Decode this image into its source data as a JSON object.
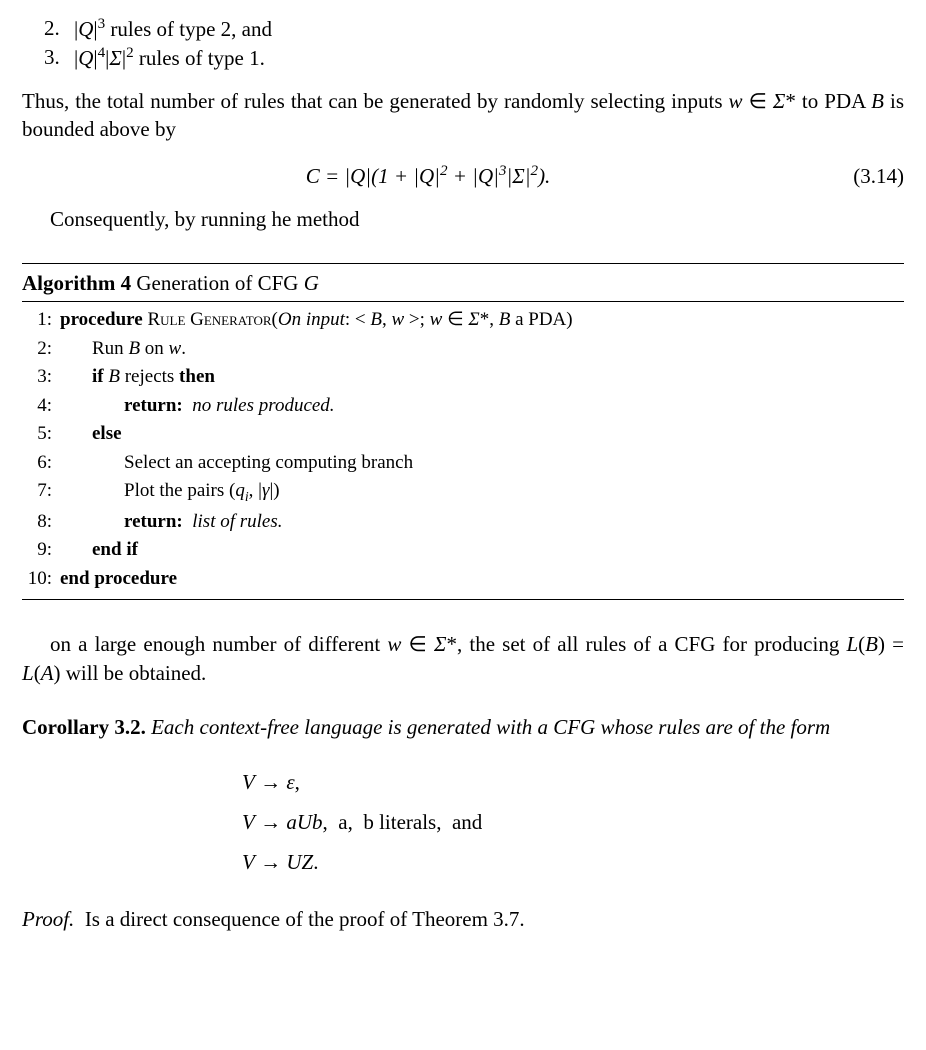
{
  "listitems": [
    {
      "num": "2.",
      "text_html": "|<i>Q</i>|<sup>3</sup> rules of type 2, and"
    },
    {
      "num": "3.",
      "text_html": "|<i>Q</i>|<sup>4</sup>|<i>Σ</i>|<sup>2</sup> rules of type 1."
    }
  ],
  "para1_html": "Thus, the total number of rules that can be generated by randomly selecting inputs <i>w</i> ∈ <i>Σ</i>* to PDA <i>B</i> is bounded above by",
  "equation_html": "C = |Q|(1 + |Q|<sup>2</sup> + |Q|<sup>3</sup>|Σ|<sup>2</sup>).",
  "equation_num": "(3.14)",
  "para2_html": "Consequently, by running he method",
  "algo": {
    "title_html": "<b>Algorithm 4</b> Generation of CFG <i>G</i>",
    "lines": [
      {
        "n": "1:",
        "indent": 1,
        "html": "<b>procedure</b> <span class=\"smallcaps\">Rule Generator</span>(<i>On input</i>: &lt; <i>B</i>, <i>w</i> &gt;; <i>w</i> ∈ <i>Σ</i>*, <i>B</i> a PDA)"
      },
      {
        "n": "2:",
        "indent": 2,
        "html": "Run <i>B</i> on <i>w</i>."
      },
      {
        "n": "3:",
        "indent": 2,
        "html": "<b>if</b> <i>B</i> rejects <b>then</b>"
      },
      {
        "n": "4:",
        "indent": 3,
        "html": "<b>return:</b> &nbsp;<i>no rules produced.</i>"
      },
      {
        "n": "5:",
        "indent": 2,
        "html": "<b>else</b>"
      },
      {
        "n": "6:",
        "indent": 3,
        "html": "Select an accepting computing branch"
      },
      {
        "n": "7:",
        "indent": 3,
        "html": "Plot the pairs (<i>q<sub>i</sub></i>, |<i>γ</i>|)"
      },
      {
        "n": "8:",
        "indent": 3,
        "html": "<b>return:</b> &nbsp;<i>list of rules.</i>"
      },
      {
        "n": "9:",
        "indent": 2,
        "html": "<b>end if</b>"
      },
      {
        "n": "10:",
        "indent": 1,
        "html": "<b>end procedure</b>"
      }
    ]
  },
  "para3_html": "on a large enough number of different <i>w</i> ∈ <i>Σ</i>*, the set of all rules of a CFG for producing <i>L</i>(<i>B</i>) = <i>L</i>(<i>A</i>) will be obtained.",
  "corollary_html": "<b>Corollary 3.2.</b> <i>Each context-free language is generated with a CFG whose rules are of the form</i>",
  "grammar": [
    "<i>V</i> → <i>ε</i>,",
    "<i>V</i> → <i>aUb</i>,&nbsp; a,&nbsp; b literals,&nbsp; and",
    "<i>V</i> → <i>UZ</i>."
  ],
  "proof_html": "<i>Proof.</i>&nbsp; Is a direct consequence of the proof of Theorem 3.7."
}
